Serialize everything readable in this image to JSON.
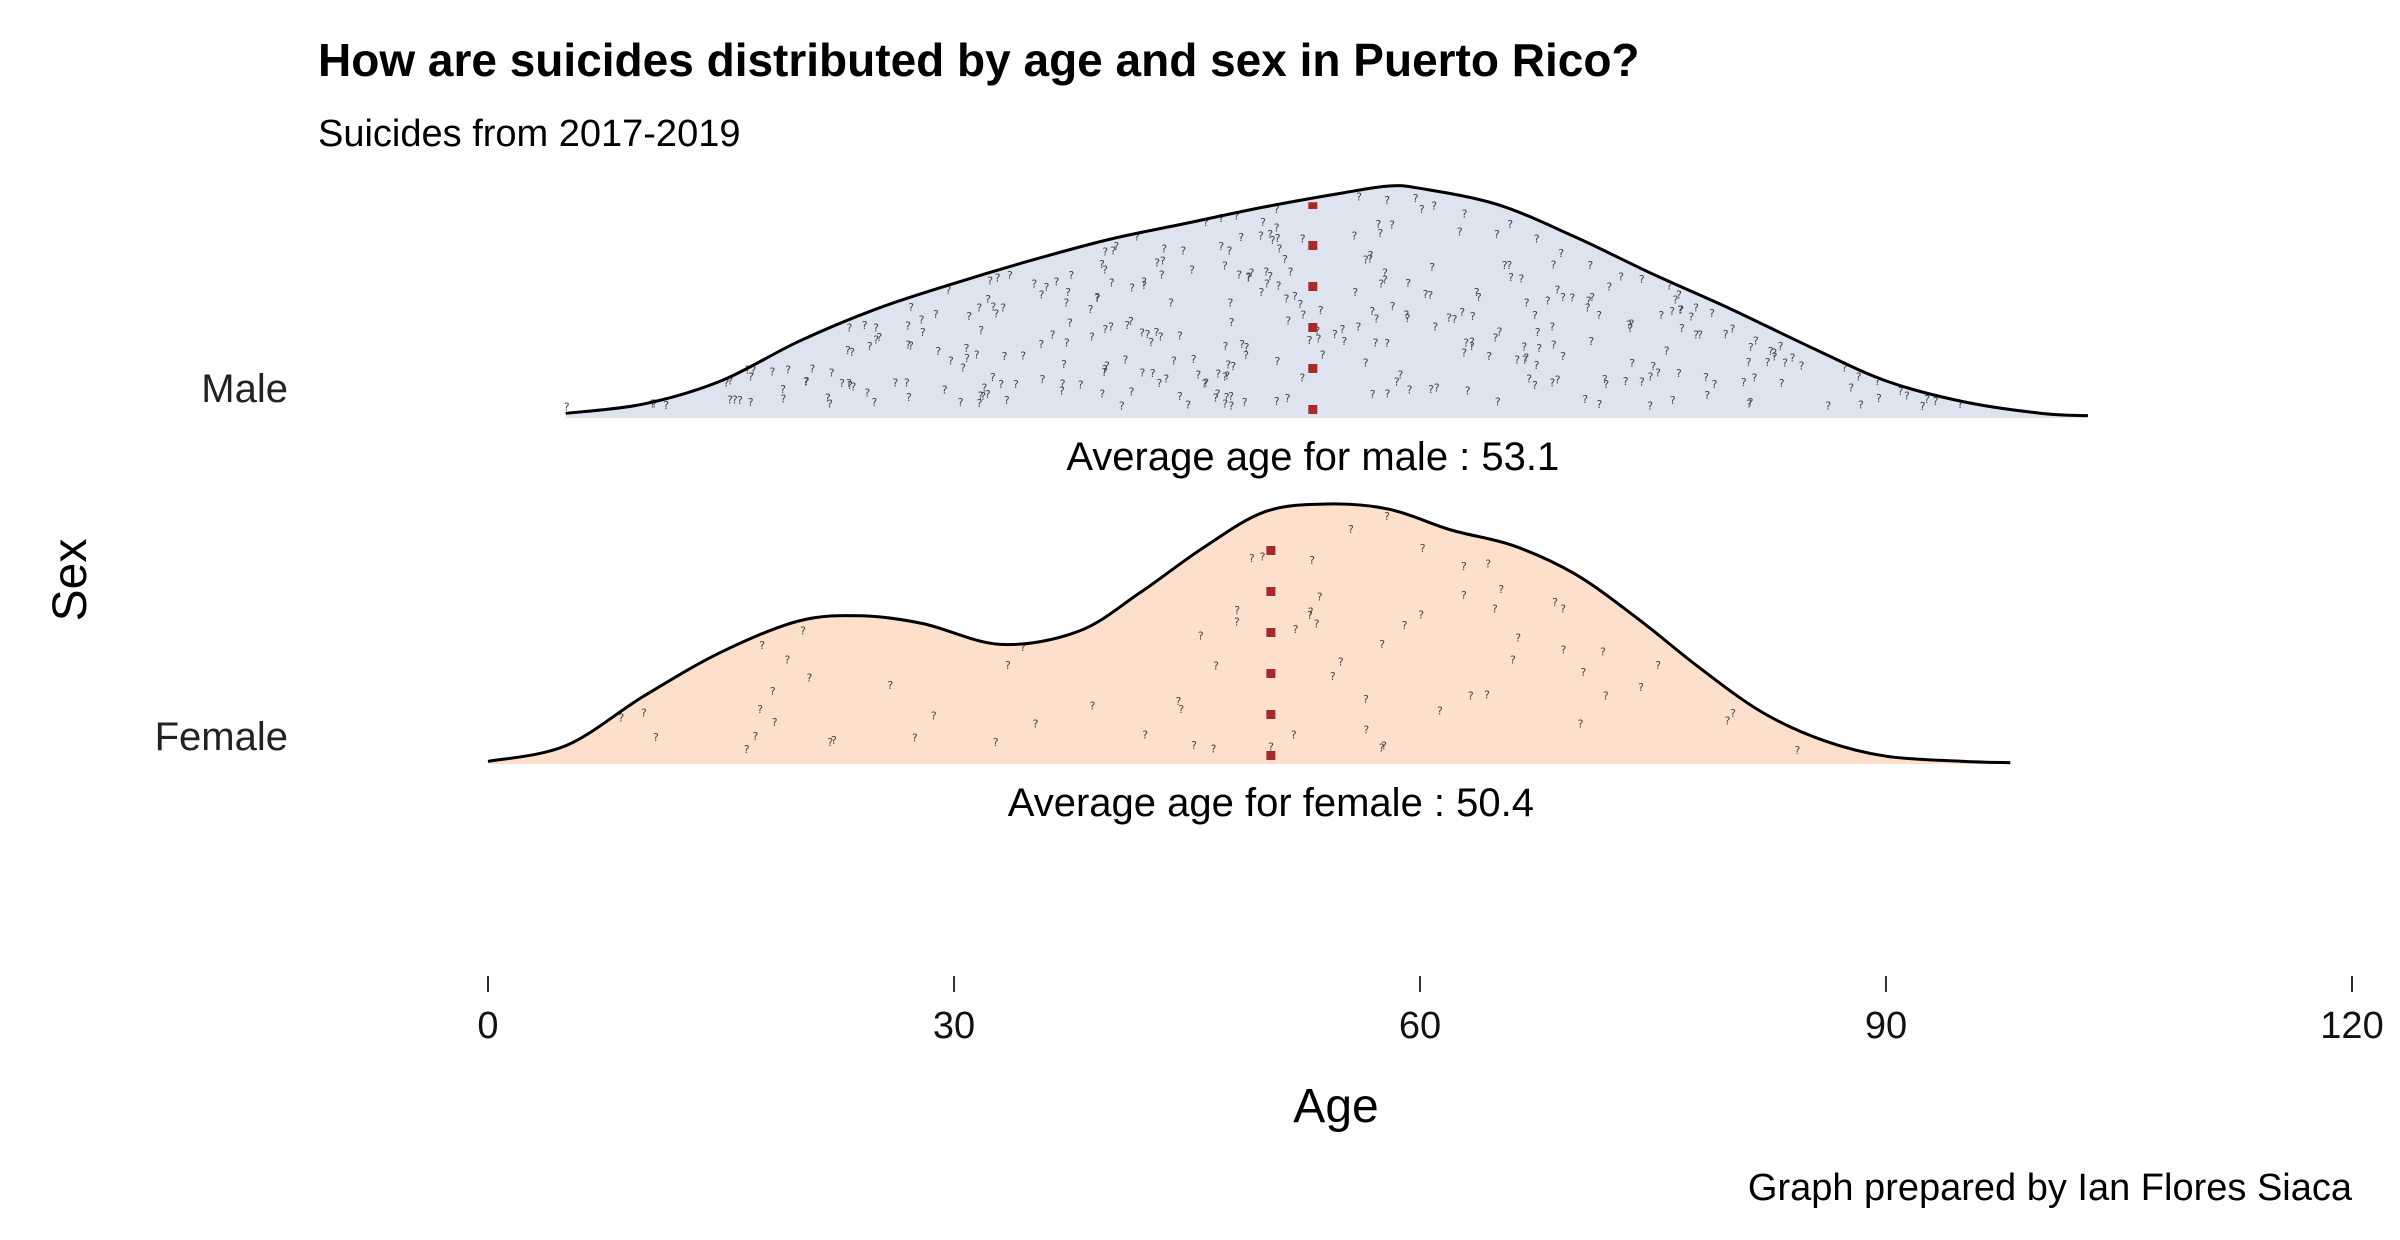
{
  "chart_data": {
    "type": "ridgeline",
    "title": "How are suicides distributed by age and sex in Puerto Rico?",
    "subtitle": "Suicides from 2017-2019",
    "xlabel": "Age",
    "ylabel": "Sex",
    "xlim": [
      0,
      120
    ],
    "xticks": [
      0,
      30,
      60,
      90,
      120
    ],
    "caption": "Graph prepared by Ian Flores Siaca",
    "grid": false,
    "series": [
      {
        "name": "Male",
        "fill": "#dde3ef",
        "mean": 53.1,
        "annotation": "Average age for male : 53.1",
        "density": {
          "x": [
            5,
            10,
            15,
            20,
            25,
            30,
            35,
            40,
            45,
            50,
            55,
            58,
            60,
            65,
            70,
            75,
            80,
            85,
            90,
            95,
            100,
            103
          ],
          "y": [
            0.02,
            0.06,
            0.16,
            0.33,
            0.47,
            0.58,
            0.68,
            0.77,
            0.84,
            0.91,
            0.97,
            1.0,
            0.99,
            0.92,
            0.78,
            0.62,
            0.47,
            0.31,
            0.16,
            0.07,
            0.02,
            0.01
          ]
        }
      },
      {
        "name": "Female",
        "fill": "#fde0cc",
        "mean": 50.4,
        "annotation": "Average age for female : 50.4",
        "density": {
          "x": [
            0,
            5,
            10,
            15,
            20,
            24,
            28,
            33,
            38,
            42,
            46,
            50,
            54,
            58,
            62,
            66,
            70,
            74,
            78,
            82,
            86,
            90,
            95,
            98
          ],
          "y": [
            0.01,
            0.07,
            0.26,
            0.43,
            0.55,
            0.57,
            0.54,
            0.46,
            0.51,
            0.66,
            0.83,
            0.97,
            1.0,
            0.98,
            0.9,
            0.84,
            0.73,
            0.56,
            0.37,
            0.2,
            0.09,
            0.03,
            0.01,
            0.005
          ]
        }
      }
    ]
  }
}
